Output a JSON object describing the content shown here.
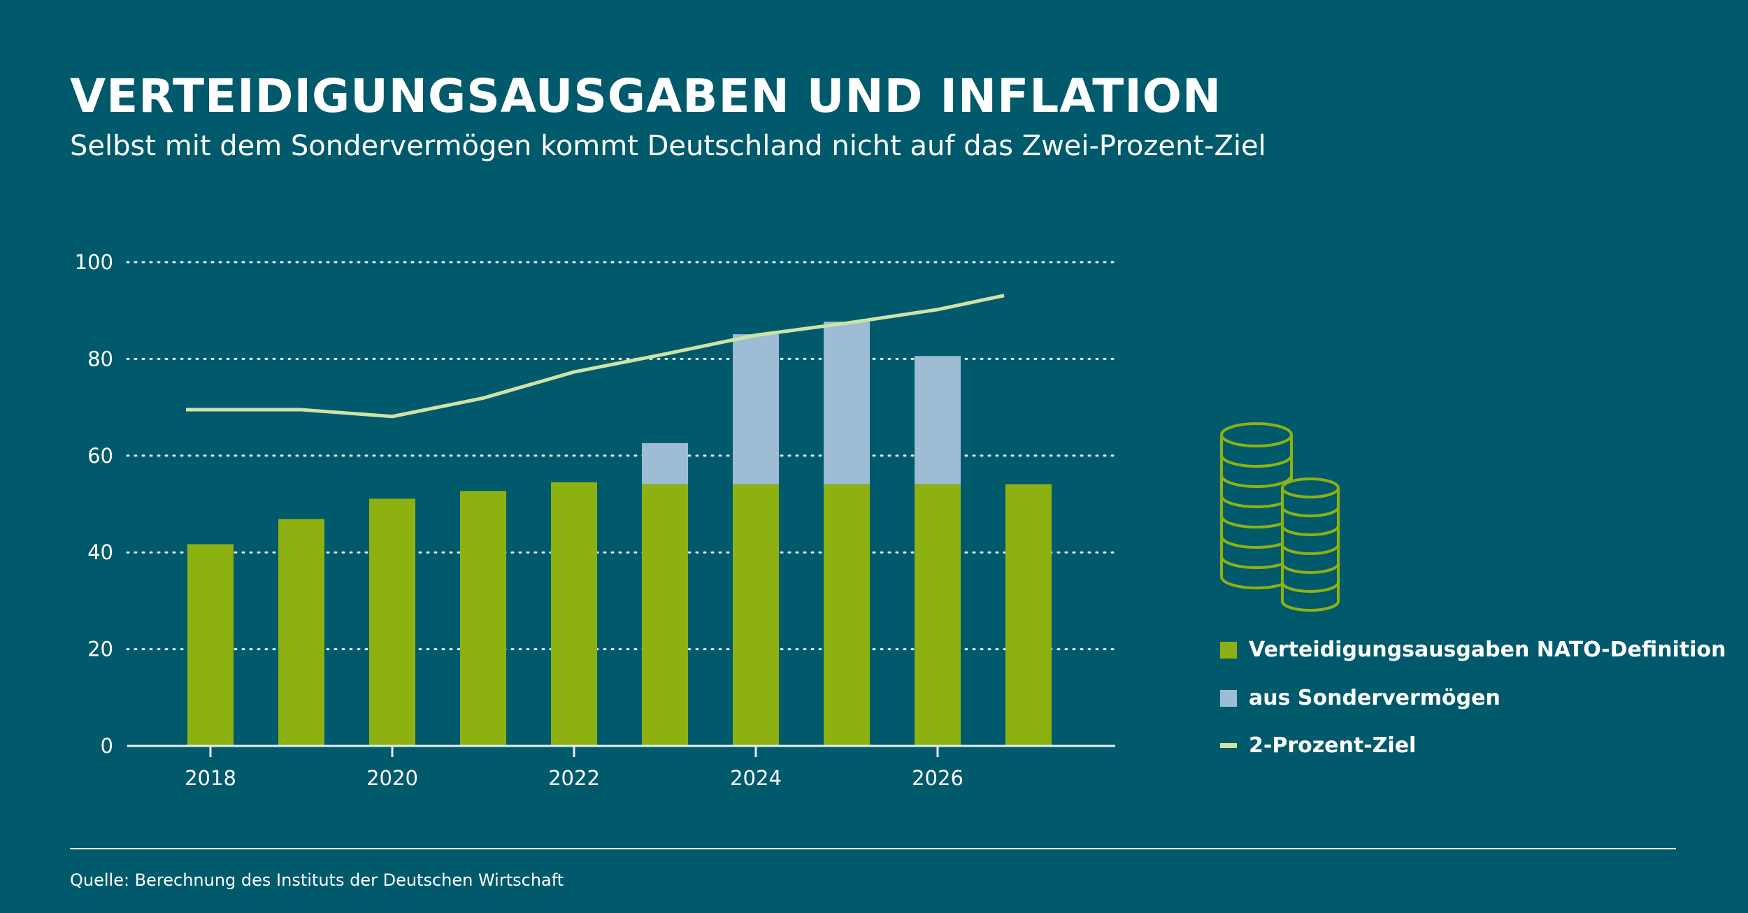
{
  "header": {
    "title": "VERTEIDIGUNGSAUSGABEN UND INFLATION",
    "subtitle": "Selbst mit dem Sondervermögen kommt Deutschland nicht auf das Zwei-Prozent-Ziel"
  },
  "footer": {
    "source": "Quelle: Berechnung des Instituts der Deutschen Wirtschaft"
  },
  "icons": {
    "coins": "coin-stacks-icon"
  },
  "colors": {
    "background": "#005a6c",
    "nato": "#8db111",
    "sondervermoegen": "#9ebcd3",
    "zwei_prozent": "#cfe3a6",
    "grid": "#e6eef0",
    "icon": "#8db111"
  },
  "chart_data": {
    "type": "bar",
    "stacked": true,
    "title": "VERTEIDIGUNGSAUSGABEN UND INFLATION",
    "subtitle": "Selbst mit dem Sondervermögen kommt Deutschland nicht auf das Zwei-Prozent-Ziel",
    "categories": [
      2018,
      2019,
      2020,
      2021,
      2022,
      2023,
      2024,
      2025,
      2026,
      2027
    ],
    "xticks": [
      "2018",
      "2020",
      "2022",
      "2024",
      "2026"
    ],
    "ylim": [
      0,
      100
    ],
    "yticks": [
      0,
      20,
      40,
      60,
      80,
      100
    ],
    "grid": true,
    "legend_position": "right",
    "series": [
      {
        "name": "Verteidigungsausgaben NATO-Definition",
        "type": "bar",
        "color": "#8db111",
        "values": [
          41.7,
          46.9,
          51.1,
          52.7,
          54.5,
          54.1,
          54.1,
          54.1,
          54.1,
          54.1
        ]
      },
      {
        "name": "aus Sondervermögen",
        "type": "bar",
        "color": "#9ebcd3",
        "values": [
          0,
          0,
          0,
          0,
          0,
          8.5,
          31.0,
          33.6,
          26.5,
          0
        ]
      },
      {
        "name": "2-Prozent-Ziel",
        "type": "line",
        "color": "#cfe3a6",
        "x": [
          2018,
          2019,
          2020,
          2021,
          2022,
          2023,
          2024,
          2025,
          2026,
          2027
        ],
        "values": [
          69.5,
          69.5,
          68.1,
          71.9,
          77.3,
          81.0,
          84.9,
          87.4,
          90.2,
          93.1
        ]
      }
    ]
  }
}
